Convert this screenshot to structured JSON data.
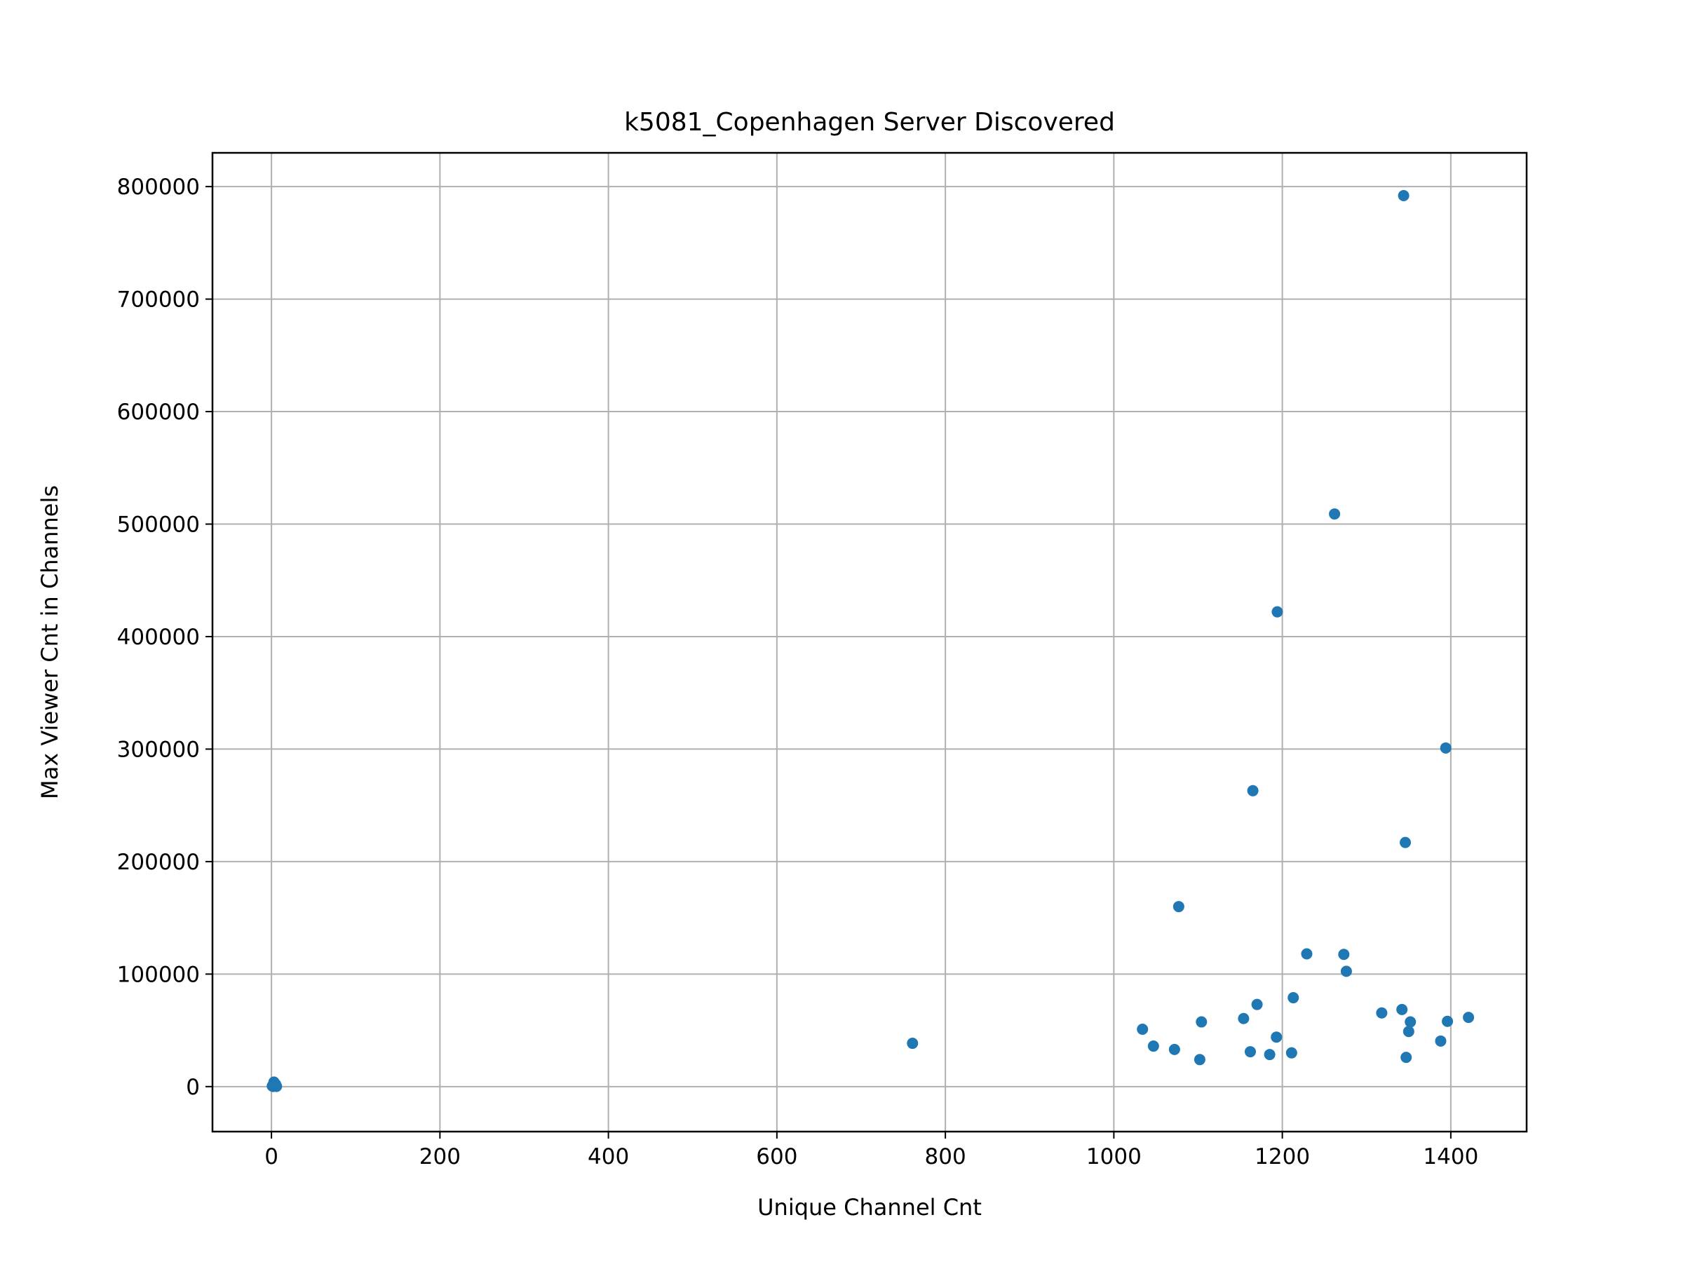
{
  "chart_data": {
    "type": "scatter",
    "title": "k5081_Copenhagen Server Discovered",
    "xlabel": "Unique Channel Cnt",
    "ylabel": "Max Viewer Cnt in Channels",
    "xlim": [
      -70,
      1490
    ],
    "ylim": [
      -40000,
      830000
    ],
    "xticks": [
      0,
      200,
      400,
      600,
      800,
      1000,
      1200,
      1400
    ],
    "yticks": [
      0,
      100000,
      200000,
      300000,
      400000,
      500000,
      600000,
      700000,
      800000
    ],
    "grid": true,
    "marker_color": "#1f77b4",
    "points": [
      {
        "x": 1,
        "y": 500
      },
      {
        "x": 2,
        "y": 1500
      },
      {
        "x": 3,
        "y": 3000
      },
      {
        "x": 4,
        "y": 800
      },
      {
        "x": 5,
        "y": 2000
      },
      {
        "x": 6,
        "y": 200
      },
      {
        "x": 3,
        "y": 4000
      },
      {
        "x": 2,
        "y": 100
      },
      {
        "x": 761,
        "y": 38500
      },
      {
        "x": 1034,
        "y": 51000
      },
      {
        "x": 1047,
        "y": 36000
      },
      {
        "x": 1072,
        "y": 33000
      },
      {
        "x": 1077,
        "y": 160000
      },
      {
        "x": 1102,
        "y": 24000
      },
      {
        "x": 1104,
        "y": 57500
      },
      {
        "x": 1154,
        "y": 60500
      },
      {
        "x": 1162,
        "y": 31000
      },
      {
        "x": 1165,
        "y": 263000
      },
      {
        "x": 1170,
        "y": 73000
      },
      {
        "x": 1185,
        "y": 28500
      },
      {
        "x": 1193,
        "y": 44000
      },
      {
        "x": 1194,
        "y": 422000
      },
      {
        "x": 1211,
        "y": 30000
      },
      {
        "x": 1213,
        "y": 79000
      },
      {
        "x": 1229,
        "y": 118000
      },
      {
        "x": 1262,
        "y": 509000
      },
      {
        "x": 1273,
        "y": 117500
      },
      {
        "x": 1276,
        "y": 102500
      },
      {
        "x": 1318,
        "y": 65500
      },
      {
        "x": 1342,
        "y": 68500
      },
      {
        "x": 1344,
        "y": 792000
      },
      {
        "x": 1346,
        "y": 217000
      },
      {
        "x": 1347,
        "y": 26000
      },
      {
        "x": 1350,
        "y": 49000
      },
      {
        "x": 1352,
        "y": 57500
      },
      {
        "x": 1388,
        "y": 40500
      },
      {
        "x": 1394,
        "y": 301000
      },
      {
        "x": 1396,
        "y": 58000
      },
      {
        "x": 1421,
        "y": 61500
      }
    ]
  }
}
